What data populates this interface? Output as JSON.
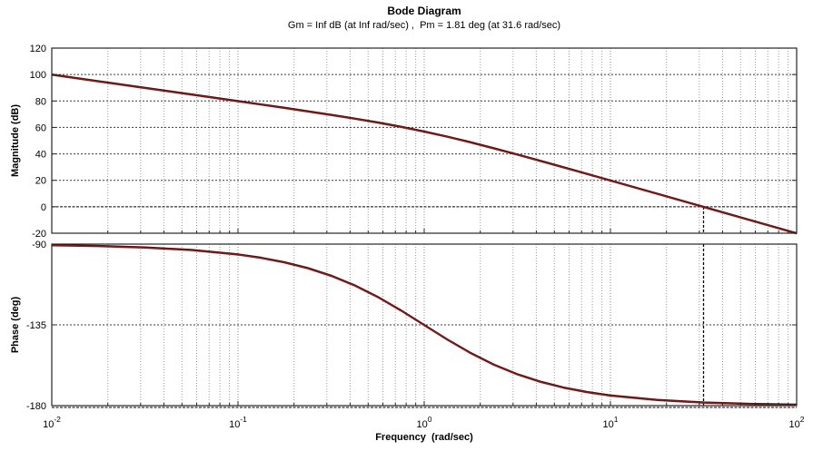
{
  "chart_data": {
    "type": "line",
    "title": "Bode Diagram",
    "subtitle": "Gm = Inf dB (at Inf rad/sec) ,  Pm = 1.81 deg (at 31.6 rad/sec)",
    "xlabel": "Frequency  (rad/sec)",
    "x_scale": "log",
    "x_range": [
      0.01,
      100
    ],
    "x_tick_exponents": [
      -2,
      -1,
      0,
      1,
      2
    ],
    "grid": true,
    "legend": "none",
    "curve_color": "#8b1515",
    "gain_margin": {
      "value_db": "Inf",
      "at_rad_per_sec": "Inf"
    },
    "phase_margin": {
      "value_deg": 1.81,
      "at_rad_per_sec": 31.6
    },
    "x": [
      0.01,
      0.0178,
      0.0316,
      0.0562,
      0.1,
      0.1334,
      0.1778,
      0.2371,
      0.3162,
      0.4217,
      0.5623,
      0.75,
      1,
      1.334,
      1.778,
      2.371,
      3.162,
      4.217,
      5.623,
      7.499,
      10,
      17.78,
      31.62,
      56.23,
      100
    ],
    "subplots": [
      {
        "name": "magnitude",
        "ylabel": "Magnitude (dB)",
        "ylim": [
          -20,
          120
        ],
        "yticks": [
          120,
          100,
          80,
          60,
          40,
          20,
          0,
          -20
        ],
        "gridlines_at": [
          100,
          80,
          60,
          40,
          20
        ],
        "zero_db_line": 0,
        "crossover_marker": 31.62,
        "values": [
          100,
          95,
          90,
          85,
          79.96,
          77.42,
          74.86,
          72.26,
          69.59,
          66.79,
          63.81,
          60.56,
          56.99,
          53.06,
          48.81,
          44.29,
          39.59,
          34.76,
          29.87,
          24.92,
          19.96,
          9.99,
          0,
          -10,
          -20
        ]
      },
      {
        "name": "phase",
        "ylabel": "Phase (deg)",
        "ylim": [
          -180,
          -90
        ],
        "yticks": [
          -90,
          -135,
          -180
        ],
        "gridlines_at": [
          -135
        ],
        "reference_line": -180,
        "crossover_marker": 31.62,
        "values": [
          -90.57,
          -91.02,
          -91.81,
          -93.22,
          -95.71,
          -97.6,
          -100.09,
          -103.34,
          -107.55,
          -112.86,
          -119.34,
          -126.87,
          -135,
          -143.14,
          -150.65,
          -157.13,
          -162.45,
          -166.66,
          -169.92,
          -172.4,
          -174.29,
          -176.78,
          -178.19,
          -178.98,
          -179.43
        ]
      }
    ]
  }
}
